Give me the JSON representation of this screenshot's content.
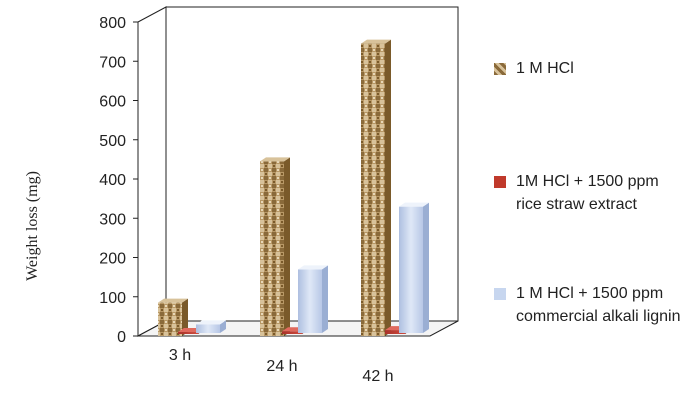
{
  "chart_data": {
    "type": "bar",
    "ylabel": "Weight loss (mg)",
    "categories": [
      "3 h",
      "24 h",
      "42 h"
    ],
    "yticks": [
      0,
      100,
      200,
      300,
      400,
      500,
      600,
      700,
      800
    ],
    "ylim": [
      0,
      800
    ],
    "series": [
      {
        "name": "1 M HCl",
        "values": [
          85,
          445,
          745
        ],
        "color": "#b08d57"
      },
      {
        "name": "1M HCl + 1500 ppm rice straw extract",
        "values": [
          5,
          7,
          10
        ],
        "color": "#c0392b"
      },
      {
        "name": "1 M HCl + 1500 ppm commercial alkali lignin",
        "values": [
          22,
          162,
          322
        ],
        "color": "#c7d6ef"
      }
    ],
    "legend_position": "right",
    "grid": false
  }
}
